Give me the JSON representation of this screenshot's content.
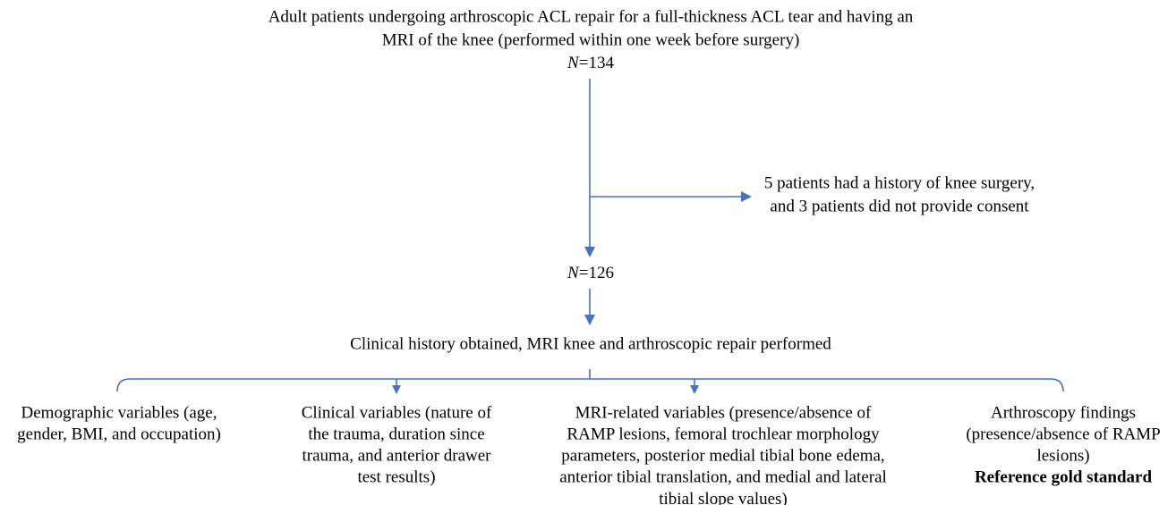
{
  "start": {
    "lines": [
      "Adult patients undergoing arthroscopic ACL repair for a full-thickness ACL tear and having an",
      "MRI of the knee (performed within one week before surgery)"
    ],
    "count": {
      "var": "N",
      "value": "=134"
    }
  },
  "exclusion": {
    "lines": [
      "5 patients had a history of knee surgery,",
      "and 3 patients did not provide consent"
    ]
  },
  "included": {
    "count": {
      "var": "N",
      "value": "=126"
    }
  },
  "procedure": "Clinical history obtained, MRI knee and arthroscopic repair performed",
  "variables": [
    {
      "lines": [
        "Demographic variables (age,",
        "gender, BMI, and occupation)"
      ]
    },
    {
      "lines": [
        "Clinical variables (nature of",
        "the trauma, duration since",
        "trauma, and anterior drawer",
        "test results)"
      ]
    },
    {
      "lines": [
        "MRI-related variables (presence/absence of",
        "RAMP lesions, femoral trochlear morphology",
        "parameters, posterior medial tibial bone edema,",
        "anterior tibial translation, and medial and lateral",
        "tibial slope values)"
      ]
    },
    {
      "lines": [
        "Arthroscopy findings",
        "(presence/absence of RAMP",
        "lesions)"
      ],
      "note": "Reference gold standard"
    }
  ]
}
